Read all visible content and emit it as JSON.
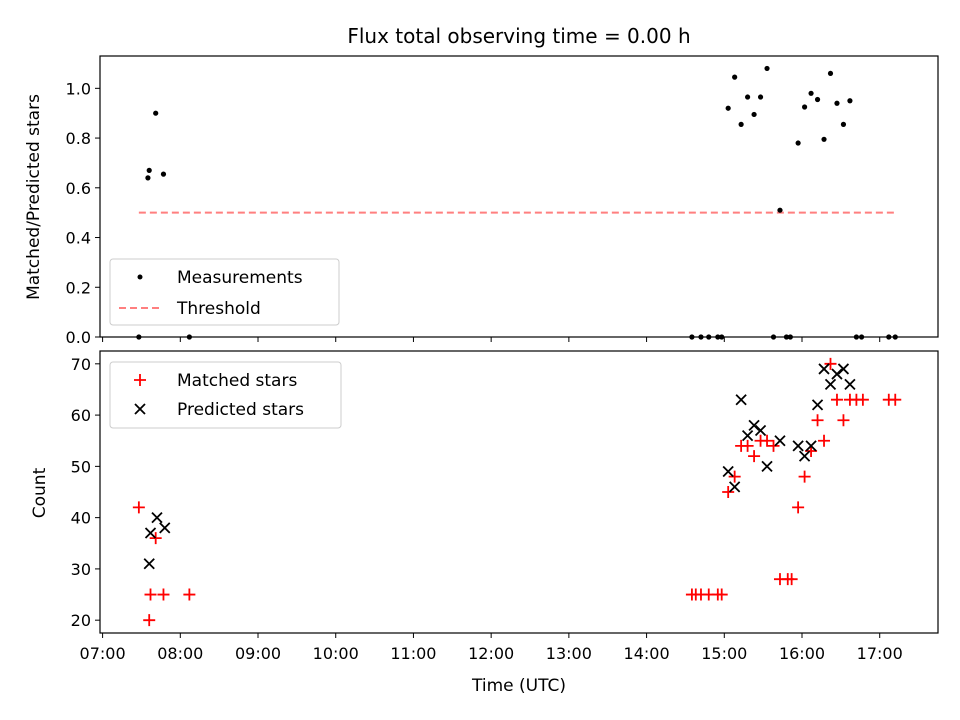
{
  "chart_data": [
    {
      "type": "scatter",
      "title": "Flux total observing time = 0.00 h",
      "xlabel": "",
      "ylabel": "Matched/Predicted stars",
      "xlim": [
        "06:58",
        "17:45"
      ],
      "ylim": [
        0,
        1.13
      ],
      "yticks": [
        "0.0",
        "0.2",
        "0.4",
        "0.6",
        "0.8",
        "1.0"
      ],
      "legend": {
        "position": "lower-left"
      },
      "series": [
        {
          "name": "Measurements",
          "kind": "points",
          "color": "#000000",
          "points": [
            [
              "07:28",
              0.0
            ],
            [
              "07:35",
              0.64
            ],
            [
              "07:36",
              0.67
            ],
            [
              "07:41",
              0.9
            ],
            [
              "07:47",
              0.655
            ],
            [
              "08:07",
              0.0
            ],
            [
              "14:35",
              0.0
            ],
            [
              "14:42",
              0.0
            ],
            [
              "14:48",
              0.0
            ],
            [
              "14:55",
              0.0
            ],
            [
              "14:58",
              0.0
            ],
            [
              "15:03",
              0.92
            ],
            [
              "15:08",
              1.045
            ],
            [
              "15:13",
              0.855
            ],
            [
              "15:18",
              0.965
            ],
            [
              "15:23",
              0.895
            ],
            [
              "15:28",
              0.965
            ],
            [
              "15:33",
              1.08
            ],
            [
              "15:38",
              0.0
            ],
            [
              "15:43",
              0.51
            ],
            [
              "15:48",
              0.0
            ],
            [
              "15:51",
              0.0
            ],
            [
              "15:57",
              0.78
            ],
            [
              "16:02",
              0.925
            ],
            [
              "16:07",
              0.98
            ],
            [
              "16:12",
              0.955
            ],
            [
              "16:17",
              0.795
            ],
            [
              "16:22",
              1.06
            ],
            [
              "16:27",
              0.94
            ],
            [
              "16:32",
              0.855
            ],
            [
              "16:37",
              0.95
            ],
            [
              "16:42",
              0.0
            ],
            [
              "16:46",
              0.0
            ],
            [
              "17:07",
              0.0
            ],
            [
              "17:12",
              0.0
            ]
          ]
        },
        {
          "name": "Threshold",
          "kind": "line",
          "color": "#ff7f7f",
          "points": [
            [
              "07:28",
              0.5
            ],
            [
              "17:12",
              0.5
            ]
          ]
        }
      ]
    },
    {
      "type": "scatter",
      "title": "",
      "xlabel": "Time (UTC)",
      "ylabel": "Count",
      "xlim": [
        "06:58",
        "17:45"
      ],
      "ylim": [
        17.5,
        72.5
      ],
      "xticks": [
        "07:00",
        "08:00",
        "09:00",
        "10:00",
        "11:00",
        "12:00",
        "13:00",
        "14:00",
        "15:00",
        "16:00",
        "17:00"
      ],
      "yticks": [
        "20",
        "30",
        "40",
        "50",
        "60",
        "70"
      ],
      "legend": {
        "position": "upper-left"
      },
      "series": [
        {
          "name": "Matched stars",
          "marker": "plus",
          "color": "#ff0000",
          "points": [
            [
              "07:28",
              42
            ],
            [
              "07:36",
              20
            ],
            [
              "07:37",
              25
            ],
            [
              "07:41",
              36
            ],
            [
              "07:47",
              25
            ],
            [
              "08:07",
              25
            ],
            [
              "14:35",
              25
            ],
            [
              "14:38",
              25
            ],
            [
              "14:42",
              25
            ],
            [
              "14:48",
              25
            ],
            [
              "14:55",
              25
            ],
            [
              "14:58",
              25
            ],
            [
              "15:03",
              45
            ],
            [
              "15:08",
              48
            ],
            [
              "15:13",
              54
            ],
            [
              "15:18",
              54
            ],
            [
              "15:23",
              52
            ],
            [
              "15:28",
              55
            ],
            [
              "15:33",
              55
            ],
            [
              "15:38",
              54
            ],
            [
              "15:43",
              28
            ],
            [
              "15:49",
              28
            ],
            [
              "15:52",
              28
            ],
            [
              "15:57",
              42
            ],
            [
              "16:02",
              48
            ],
            [
              "16:07",
              53
            ],
            [
              "16:12",
              59
            ],
            [
              "16:17",
              55
            ],
            [
              "16:22",
              70
            ],
            [
              "16:27",
              63
            ],
            [
              "16:32",
              59
            ],
            [
              "16:37",
              63
            ],
            [
              "16:42",
              63
            ],
            [
              "16:47",
              63
            ],
            [
              "17:07",
              63
            ],
            [
              "17:12",
              63
            ]
          ]
        },
        {
          "name": "Predicted stars",
          "marker": "x",
          "color": "#000000",
          "points": [
            [
              "07:36",
              31
            ],
            [
              "07:37",
              37
            ],
            [
              "07:42",
              40
            ],
            [
              "07:48",
              38
            ],
            [
              "15:03",
              49
            ],
            [
              "15:08",
              46
            ],
            [
              "15:13",
              63
            ],
            [
              "15:18",
              56
            ],
            [
              "15:23",
              58
            ],
            [
              "15:28",
              57
            ],
            [
              "15:33",
              50
            ],
            [
              "15:43",
              55
            ],
            [
              "15:57",
              54
            ],
            [
              "16:02",
              52
            ],
            [
              "16:07",
              54
            ],
            [
              "16:12",
              62
            ],
            [
              "16:17",
              69
            ],
            [
              "16:22",
              66
            ],
            [
              "16:27",
              68
            ],
            [
              "16:32",
              69
            ],
            [
              "16:37",
              66
            ]
          ]
        }
      ]
    }
  ]
}
